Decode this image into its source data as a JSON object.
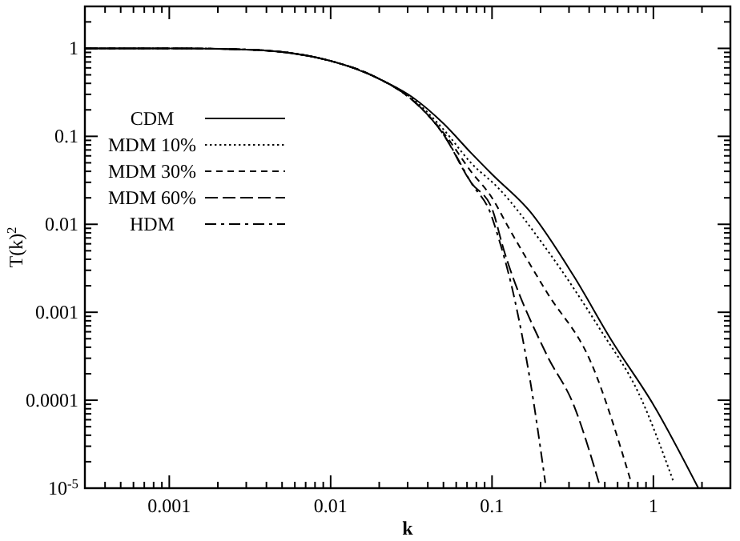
{
  "chart_data": {
    "type": "line",
    "xlabel": "k",
    "ylabel": "T(k)$^{2}$",
    "log": "xy",
    "legend": "top left",
    "grid": false,
    "xlim": [
      0.0003,
      3
    ],
    "ylim": [
      1e-05,
      3
    ],
    "xticks": [
      {
        "value": 0.0003,
        "label": null
      },
      {
        "value": 0.0004,
        "label": null
      },
      {
        "value": 0.0005,
        "label": null
      },
      {
        "value": 0.0006,
        "label": null
      },
      {
        "value": 0.0007,
        "label": null
      },
      {
        "value": 0.0008,
        "label": null
      },
      {
        "value": 0.0009,
        "label": null
      },
      0.001,
      {
        "value": 0.002,
        "label": null
      },
      {
        "value": 0.003,
        "label": null
      },
      {
        "value": 0.004,
        "label": null
      },
      {
        "value": 0.005,
        "label": null
      },
      {
        "value": 0.006,
        "label": null
      },
      {
        "value": 0.007,
        "label": null
      },
      {
        "value": 0.008,
        "label": null
      },
      {
        "value": 0.009,
        "label": null
      },
      0.01,
      {
        "value": 0.02,
        "label": null
      },
      {
        "value": 0.03,
        "label": null
      },
      {
        "value": 0.04,
        "label": null
      },
      {
        "value": 0.05,
        "label": null
      },
      {
        "value": 0.06,
        "label": null
      },
      {
        "value": 0.07,
        "label": null
      },
      {
        "value": 0.08,
        "label": null
      },
      {
        "value": 0.09,
        "label": null
      },
      0.1,
      {
        "value": 0.2,
        "label": null
      },
      {
        "value": 0.3,
        "label": null
      },
      {
        "value": 0.4,
        "label": null
      },
      {
        "value": 0.5,
        "label": null
      },
      {
        "value": 0.6,
        "label": null
      },
      {
        "value": 0.7,
        "label": null
      },
      {
        "value": 0.8,
        "label": null
      },
      {
        "value": 0.9,
        "label": null
      },
      1,
      {
        "value": 2,
        "label": null
      }
    ],
    "yticks": [
      {
        "value": 1e-05,
        "label": "10$^{-5}$"
      },
      {
        "value": 2e-05,
        "label": null
      },
      {
        "value": 3e-05,
        "label": null
      },
      {
        "value": 4e-05,
        "label": null
      },
      {
        "value": 5e-05,
        "label": null
      },
      {
        "value": 6e-05,
        "label": null
      },
      {
        "value": 7e-05,
        "label": null
      },
      {
        "value": 8e-05,
        "label": null
      },
      {
        "value": 9e-05,
        "label": null
      },
      0.0001,
      {
        "value": 0.0002,
        "label": null
      },
      {
        "value": 0.0003,
        "label": null
      },
      {
        "value": 0.0004,
        "label": null
      },
      {
        "value": 0.0005,
        "label": null
      },
      {
        "value": 0.0006,
        "label": null
      },
      {
        "value": 0.0007,
        "label": null
      },
      {
        "value": 0.0008,
        "label": null
      },
      {
        "value": 0.0009,
        "label": null
      },
      0.001,
      {
        "value": 0.002,
        "label": null
      },
      {
        "value": 0.003,
        "label": null
      },
      {
        "value": 0.004,
        "label": null
      },
      {
        "value": 0.005,
        "label": null
      },
      {
        "value": 0.006,
        "label": null
      },
      {
        "value": 0.007,
        "label": null
      },
      {
        "value": 0.008,
        "label": null
      },
      {
        "value": 0.009,
        "label": null
      },
      0.01,
      {
        "value": 0.02,
        "label": null
      },
      {
        "value": 0.03,
        "label": null
      },
      {
        "value": 0.04,
        "label": null
      },
      {
        "value": 0.05,
        "label": null
      },
      {
        "value": 0.06,
        "label": null
      },
      {
        "value": 0.07,
        "label": null
      },
      {
        "value": 0.08,
        "label": null
      },
      {
        "value": 0.09,
        "label": null
      },
      0.1,
      {
        "value": 0.2,
        "label": null
      },
      {
        "value": 0.3,
        "label": null
      },
      {
        "value": 0.4,
        "label": null
      },
      {
        "value": 0.5,
        "label": null
      },
      {
        "value": 0.6,
        "label": null
      },
      {
        "value": 0.7,
        "label": null
      },
      {
        "value": 0.8,
        "label": null
      },
      {
        "value": 0.9,
        "label": null
      },
      1,
      {
        "value": 2,
        "label": null
      },
      {
        "value": 3,
        "label": null
      }
    ],
    "series": [
      {
        "name": "CDM",
        "color": "#000000",
        "line_style": "solid",
        "x": [
          0.0003,
          0.001,
          0.003,
          0.01,
          0.02,
          0.032,
          0.05,
          0.074,
          0.1,
          0.173,
          0.32,
          0.55,
          1,
          1.9
        ],
        "values": [
          1,
          1,
          0.97,
          0.72,
          0.45,
          0.28,
          0.14,
          0.065,
          0.037,
          0.0138,
          0.0026,
          0.00048,
          8.9e-05,
          1e-05
        ]
      },
      {
        "name": "MDM 10%",
        "color": "#000000",
        "line_style": "dotted",
        "x": [
          0.0003,
          0.001,
          0.003,
          0.01,
          0.02,
          0.032,
          0.05,
          0.074,
          0.109,
          0.218,
          0.47,
          0.81,
          1.34
        ],
        "values": [
          1,
          1,
          0.97,
          0.72,
          0.45,
          0.27,
          0.12,
          0.05,
          0.026,
          0.0052,
          0.00063,
          0.00012,
          1.15e-05
        ]
      },
      {
        "name": "MDM 30%",
        "color": "#000000",
        "line_style": "dashed",
        "x": [
          0.0003,
          0.001,
          0.003,
          0.01,
          0.02,
          0.032,
          0.05,
          0.074,
          0.1,
          0.127,
          0.218,
          0.41,
          0.73
        ],
        "values": [
          1,
          1,
          0.97,
          0.72,
          0.45,
          0.26,
          0.11,
          0.04,
          0.02,
          0.0091,
          0.0017,
          0.00027,
          1.15e-05
        ]
      },
      {
        "name": "MDM 60%",
        "color": "#000000",
        "line_style": "longdash",
        "x": [
          0.0003,
          0.001,
          0.003,
          0.01,
          0.02,
          0.032,
          0.05,
          0.074,
          0.1,
          0.118,
          0.218,
          0.32,
          0.46
        ],
        "values": [
          1,
          1,
          0.97,
          0.72,
          0.45,
          0.26,
          0.105,
          0.03,
          0.015,
          0.0052,
          0.00033,
          8.9e-05,
          1.15e-05
        ]
      },
      {
        "name": "HDM",
        "color": "#000000",
        "line_style": "dashdot",
        "x": [
          0.0003,
          0.001,
          0.003,
          0.01,
          0.02,
          0.032,
          0.05,
          0.074,
          0.1,
          0.105,
          0.137,
          0.173,
          0.214
        ],
        "values": [
          1,
          1,
          0.97,
          0.72,
          0.45,
          0.26,
          0.105,
          0.03,
          0.012,
          0.0091,
          0.0015,
          0.00016,
          1.15e-05
        ]
      }
    ]
  }
}
